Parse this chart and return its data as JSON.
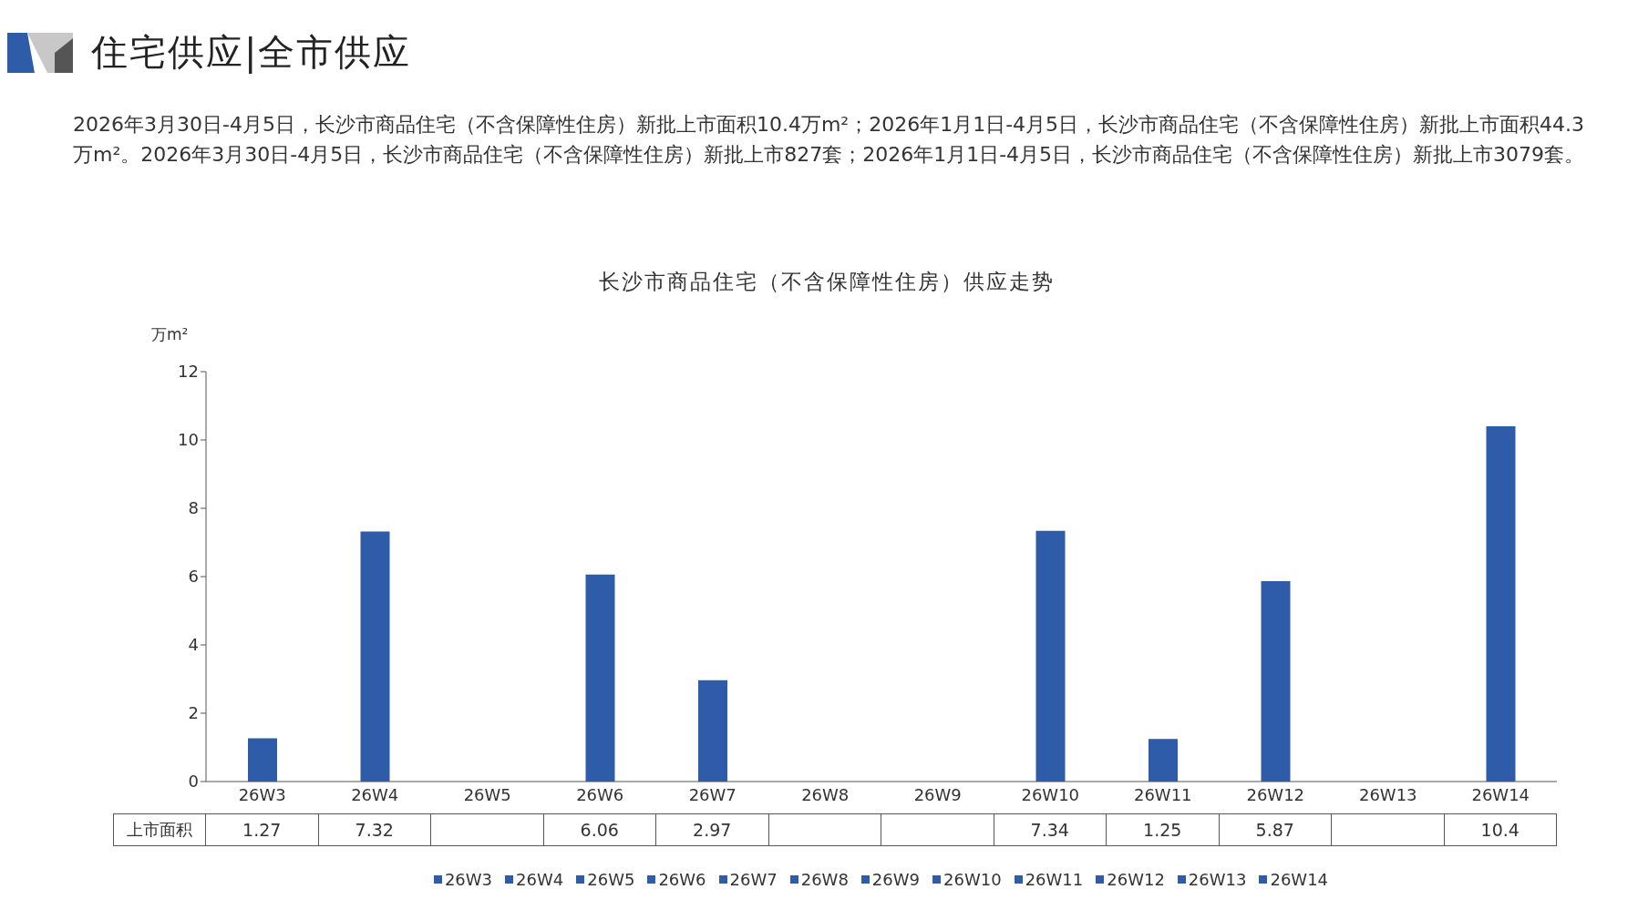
{
  "chart_data": {
    "type": "bar",
    "title": "长沙市商品住宅（不含保障性住房）供应走势",
    "annotations": [
      "住宅供应|全市供应",
      "2026年3月30日-4月5日，长沙市商品住宅（不含保障性住房）新批上市面积10.4万m²；2026年1月1日-4月5日，长沙市商品住宅（不含保障性住房）新批上市面积44.3万m²。2026年3月30日-4月5日，长沙市商品住宅（不含保障性住房）新批上市827套；2026年1月1日-4月5日，长沙市商品住宅（不含保障性住房）新批上市3079套。"
    ],
    "ylabel": "万m²",
    "categories": [
      "26W3",
      "26W4",
      "26W5",
      "26W6",
      "26W7",
      "26W8",
      "26W9",
      "26W10",
      "26W11",
      "26W12",
      "26W13",
      "26W14"
    ],
    "series": [
      {
        "name": "上市面积",
        "color": "#2e5ca9",
        "values": [
          1.27,
          7.32,
          null,
          6.06,
          2.97,
          null,
          null,
          7.34,
          1.25,
          5.87,
          null,
          10.4
        ]
      }
    ],
    "ylim": [
      0,
      12
    ],
    "yticks": [
      0,
      2,
      4,
      6,
      8,
      10,
      12
    ],
    "legend": "bottom",
    "data_labels": true
  }
}
